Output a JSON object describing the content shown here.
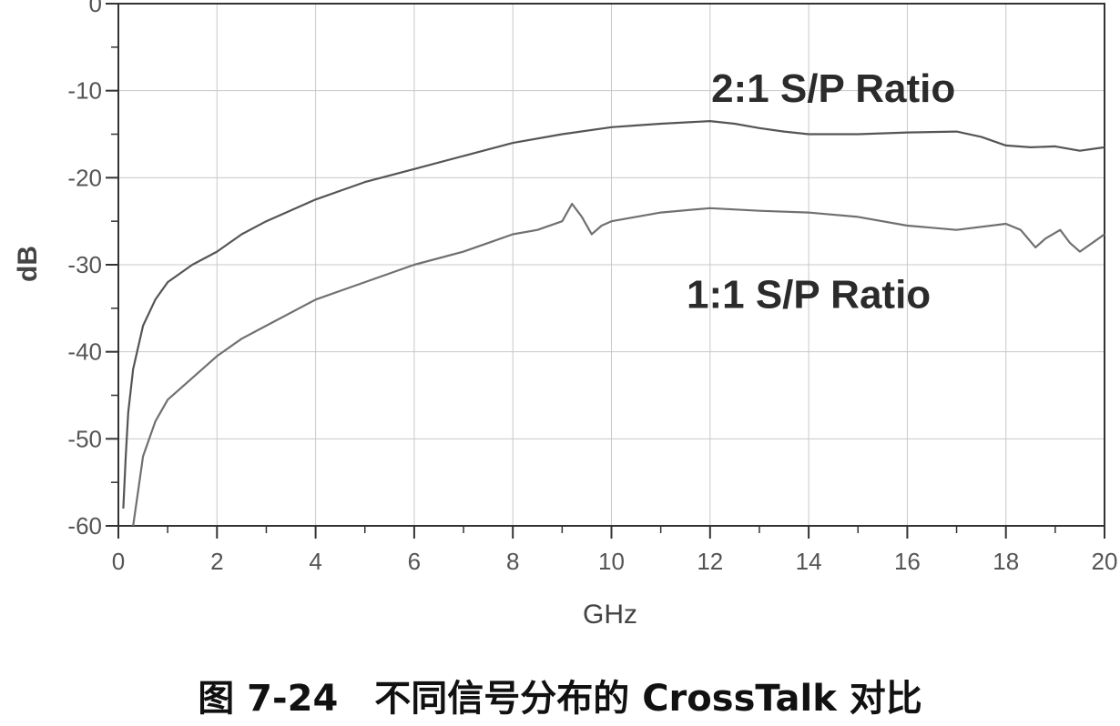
{
  "chart_data": {
    "type": "line",
    "xlabel": "GHz",
    "ylabel": "dB",
    "xlim": [
      0,
      20
    ],
    "ylim": [
      -60,
      0
    ],
    "xticks": [
      "0",
      "2",
      "4",
      "6",
      "8",
      "10",
      "12",
      "14",
      "16",
      "18",
      "20"
    ],
    "yticks": [
      "0",
      "-10",
      "-20",
      "-30",
      "-40",
      "-50",
      "-60"
    ],
    "grid": true,
    "series": [
      {
        "name": "2:1 S/P Ratio",
        "color": "#555555",
        "x": [
          0.1,
          0.15,
          0.2,
          0.3,
          0.5,
          0.75,
          1,
          1.5,
          2,
          2.5,
          3,
          4,
          5,
          6,
          7,
          8,
          9,
          10,
          10.5,
          11,
          12,
          12.5,
          13,
          13.5,
          14,
          15,
          16,
          17,
          17.5,
          18,
          18.5,
          19,
          19.5,
          20
        ],
        "y": [
          -58,
          -52,
          -47,
          -42,
          -37,
          -34,
          -32,
          -30,
          -28.5,
          -26.5,
          -25,
          -22.5,
          -20.5,
          -19,
          -17.5,
          -16,
          -15,
          -14.2,
          -14,
          -13.8,
          -13.5,
          -13.8,
          -14.3,
          -14.7,
          -15,
          -15,
          -14.8,
          -14.7,
          -15.3,
          -16.3,
          -16.5,
          -16.4,
          -16.9,
          -16.5
        ]
      },
      {
        "name": "1:1 S/P Ratio",
        "color": "#707070",
        "x": [
          0.3,
          0.4,
          0.5,
          0.75,
          1,
          1.5,
          2,
          2.5,
          3,
          4,
          5,
          6,
          7,
          7.5,
          8,
          8.5,
          9,
          9.2,
          9.4,
          9.6,
          9.8,
          10,
          11,
          12,
          13,
          14,
          15,
          16,
          17,
          18,
          18.3,
          18.6,
          18.8,
          19.1,
          19.3,
          19.5,
          19.8,
          20
        ],
        "y": [
          -60,
          -56,
          -52,
          -48,
          -45.5,
          -43,
          -40.5,
          -38.5,
          -37,
          -34,
          -32,
          -30,
          -28.5,
          -27.5,
          -26.5,
          -26,
          -25,
          -23,
          -24.5,
          -26.5,
          -25.5,
          -25,
          -24,
          -23.5,
          -23.8,
          -24,
          -24.5,
          -25.5,
          -26,
          -25.3,
          -26,
          -28,
          -27,
          -26,
          -27.5,
          -28.5,
          -27.3,
          -26.5
        ]
      }
    ],
    "annotations": [
      {
        "text": "2:1 S/P Ratio",
        "x": 14.5,
        "y": -9.7
      },
      {
        "text": "1:1 S/P Ratio",
        "x": 14,
        "y": -33.4
      }
    ]
  },
  "caption": "图 7-24　不同信号分布的 CrossTalk 对比"
}
